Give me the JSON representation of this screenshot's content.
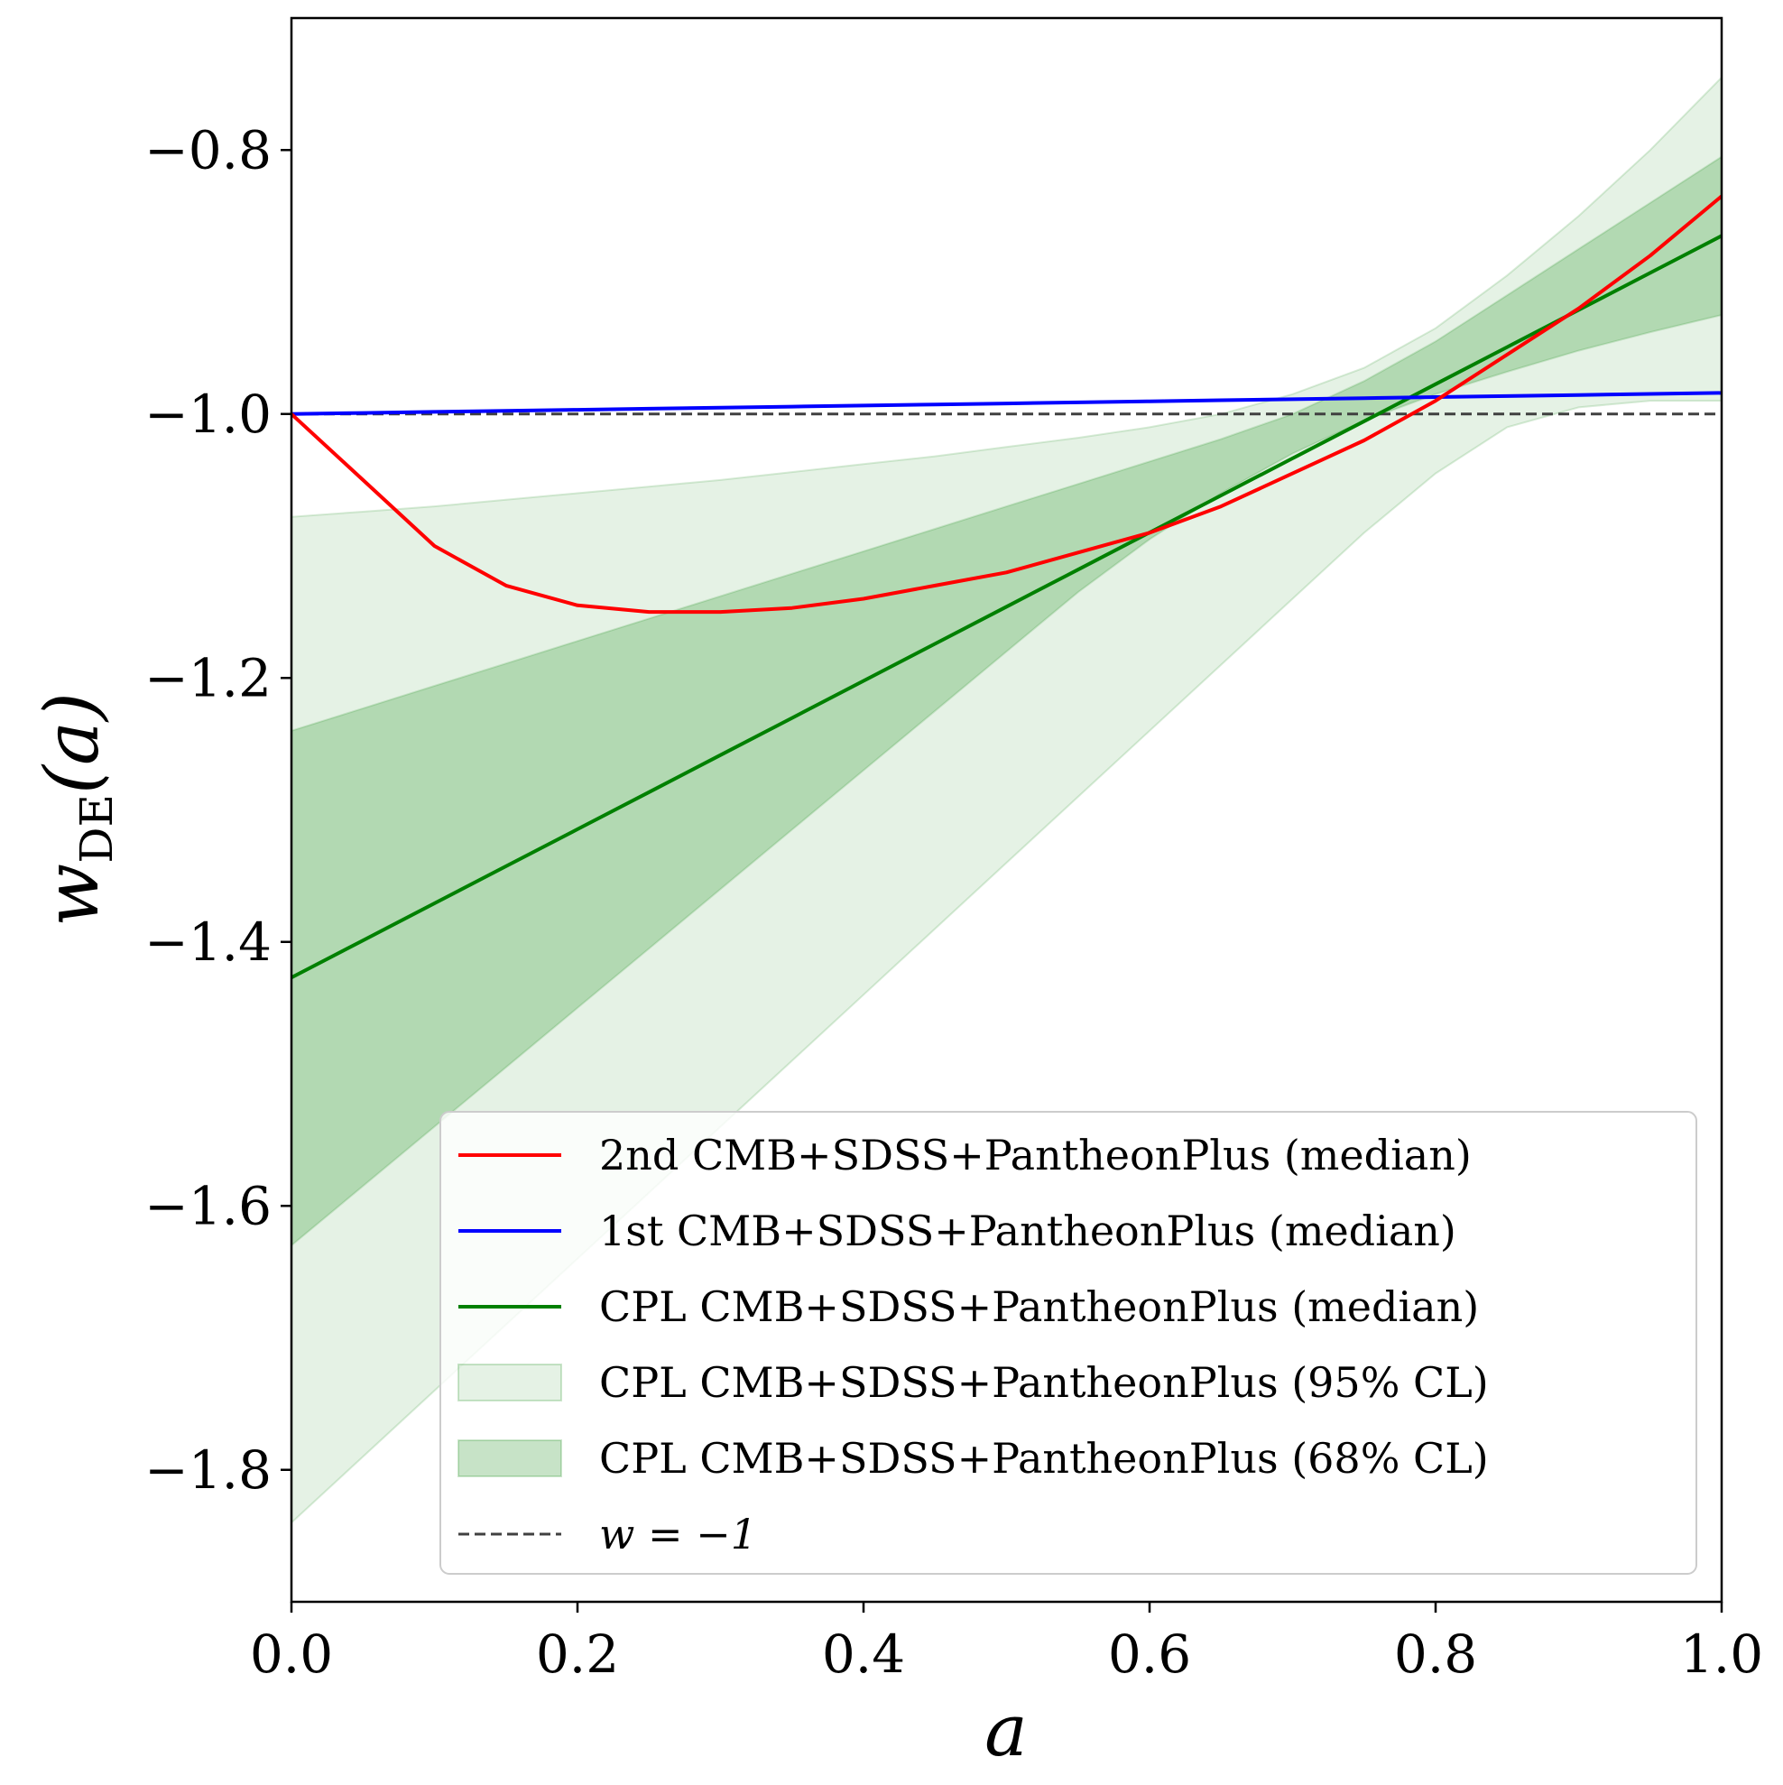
{
  "chart_data": {
    "type": "line",
    "title": "",
    "xlabel": "a",
    "ylabel": {
      "base": "w",
      "subscript": "DE",
      "suffix": "(a)"
    },
    "xlim": [
      0.0,
      1.0
    ],
    "ylim": [
      -1.9,
      -0.7
    ],
    "xticks": [
      0.0,
      0.2,
      0.4,
      0.6,
      0.8,
      1.0
    ],
    "xtick_labels": [
      "0.0",
      "0.2",
      "0.4",
      "0.6",
      "0.8",
      "1.0"
    ],
    "yticks": [
      -0.8,
      -1.0,
      -1.2,
      -1.4,
      -1.6,
      -1.8
    ],
    "ytick_labels": [
      "−0.8",
      "−1.0",
      "−1.2",
      "−1.4",
      "−1.6",
      "−1.8"
    ],
    "grid": false,
    "legend_position": "lower-right",
    "x": [
      0.0,
      0.05,
      0.1,
      0.15,
      0.2,
      0.25,
      0.3,
      0.35,
      0.4,
      0.45,
      0.5,
      0.55,
      0.6,
      0.65,
      0.7,
      0.75,
      0.8,
      0.85,
      0.9,
      0.95,
      1.0
    ],
    "series": [
      {
        "name": "2nd CMB+SDSS+PantheonPlus (median)",
        "kind": "line",
        "color": "#ff0000",
        "values": [
          -1.0,
          -1.05,
          -1.1,
          -1.13,
          -1.145,
          -1.15,
          -1.15,
          -1.147,
          -1.14,
          -1.13,
          -1.12,
          -1.105,
          -1.09,
          -1.07,
          -1.045,
          -1.02,
          -0.99,
          -0.955,
          -0.92,
          -0.88,
          -0.835
        ]
      },
      {
        "name": "1st CMB+SDSS+PantheonPlus (median)",
        "kind": "line",
        "color": "#0000ff",
        "values": [
          -1.0,
          -0.9992,
          -0.9984,
          -0.9976,
          -0.9968,
          -0.996,
          -0.9952,
          -0.9944,
          -0.9936,
          -0.9928,
          -0.992,
          -0.9912,
          -0.9904,
          -0.9896,
          -0.9888,
          -0.988,
          -0.9872,
          -0.9864,
          -0.9856,
          -0.9848,
          -0.984
        ]
      },
      {
        "name": "CPL CMB+SDSS+PantheonPlus (median)",
        "kind": "line",
        "color": "#008000",
        "values": [
          -1.427,
          -1.3989,
          -1.3708,
          -1.3427,
          -1.3146,
          -1.2865,
          -1.2584,
          -1.2303,
          -1.2022,
          -1.1741,
          -1.146,
          -1.1179,
          -1.0898,
          -1.0617,
          -1.0336,
          -1.0055,
          -0.9774,
          -0.9493,
          -0.9212,
          -0.8931,
          -0.865
        ]
      },
      {
        "name": "CPL CMB+SDSS+PantheonPlus (95% CL)",
        "kind": "band",
        "color": "#008000",
        "opacity": 0.1,
        "lower": [
          -1.84,
          -1.79,
          -1.74,
          -1.69,
          -1.64,
          -1.59,
          -1.54,
          -1.49,
          -1.44,
          -1.39,
          -1.34,
          -1.29,
          -1.24,
          -1.19,
          -1.14,
          -1.09,
          -1.045,
          -1.01,
          -0.995,
          -0.99,
          -0.99
        ],
        "upper": [
          -1.078,
          -1.074,
          -1.07,
          -1.065,
          -1.06,
          -1.055,
          -1.05,
          -1.044,
          -1.038,
          -1.032,
          -1.025,
          -1.018,
          -1.01,
          -1.0,
          -0.985,
          -0.965,
          -0.935,
          -0.895,
          -0.85,
          -0.8,
          -0.745
        ]
      },
      {
        "name": "CPL CMB+SDSS+PantheonPlus (68% CL)",
        "kind": "band",
        "color": "#008000",
        "opacity": 0.22,
        "lower": [
          -1.63,
          -1.585,
          -1.54,
          -1.495,
          -1.45,
          -1.405,
          -1.36,
          -1.315,
          -1.27,
          -1.225,
          -1.18,
          -1.135,
          -1.095,
          -1.06,
          -1.03,
          -1.005,
          -0.985,
          -0.968,
          -0.952,
          -0.938,
          -0.925
        ],
        "upper": [
          -1.24,
          -1.223,
          -1.206,
          -1.189,
          -1.172,
          -1.155,
          -1.138,
          -1.121,
          -1.104,
          -1.087,
          -1.07,
          -1.053,
          -1.036,
          -1.019,
          -1.0,
          -0.975,
          -0.945,
          -0.91,
          -0.875,
          -0.84,
          -0.805
        ]
      },
      {
        "name": "w = −1",
        "kind": "hline",
        "color": "#404040",
        "y": -1.0
      }
    ],
    "legend": [
      {
        "label": "2nd CMB+SDSS+PantheonPlus (median)",
        "style": "line",
        "color": "#ff0000"
      },
      {
        "label": "1st CMB+SDSS+PantheonPlus (median)",
        "style": "line",
        "color": "#0000ff"
      },
      {
        "label": "CPL CMB+SDSS+PantheonPlus (median)",
        "style": "line",
        "color": "#008000"
      },
      {
        "label": "CPL CMB+SDSS+PantheonPlus (95% CL)",
        "style": "patch",
        "color": "#008000",
        "opacity": 0.1
      },
      {
        "label": "CPL CMB+SDSS+PantheonPlus (68% CL)",
        "style": "patch",
        "color": "#008000",
        "opacity": 0.22
      },
      {
        "label": "w = −1",
        "style": "dashed",
        "color": "#404040"
      }
    ]
  }
}
